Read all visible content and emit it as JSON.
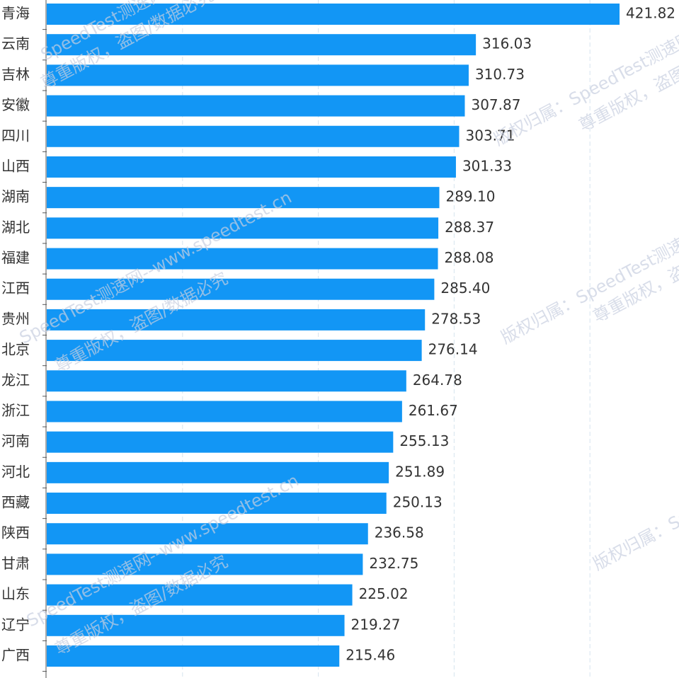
{
  "chart_data": {
    "type": "hbar",
    "categories": [
      "青海",
      "云南",
      "吉林",
      "安徽",
      "四川",
      "山西",
      "湖南",
      "湖北",
      "福建",
      "江西",
      "贵州",
      "北京",
      "龙江",
      "浙江",
      "河南",
      "河北",
      "西藏",
      "陕西",
      "甘肃",
      "山东",
      "辽宁",
      "广西"
    ],
    "values": [
      421.82,
      316.03,
      310.73,
      307.87,
      303.71,
      301.33,
      289.1,
      288.37,
      288.08,
      285.4,
      278.53,
      276.14,
      264.78,
      261.67,
      255.13,
      251.89,
      250.13,
      236.58,
      232.75,
      225.02,
      219.27,
      215.46
    ],
    "value_labels": [
      "421.82",
      "316.03",
      "310.73",
      "307.87",
      "303.71",
      "301.33",
      "289.10",
      "288.37",
      "288.08",
      "285.40",
      "278.53",
      "276.14",
      "264.78",
      "261.67",
      "255.13",
      "251.89",
      "250.13",
      "236.58",
      "232.75",
      "225.02",
      "219.27",
      "215.46"
    ],
    "color": "#1296f5",
    "xlim": [
      0,
      465.6
    ],
    "xticks": [
      0,
      100,
      200,
      300,
      400
    ],
    "grid": true,
    "watermarks": [
      "SpeedTest测速网--www.speedtest.cn",
      "尊重版权，盗图/数据必究",
      "版权归属：SpeedTest测速网",
      "尊重版权，盗图必究"
    ]
  }
}
